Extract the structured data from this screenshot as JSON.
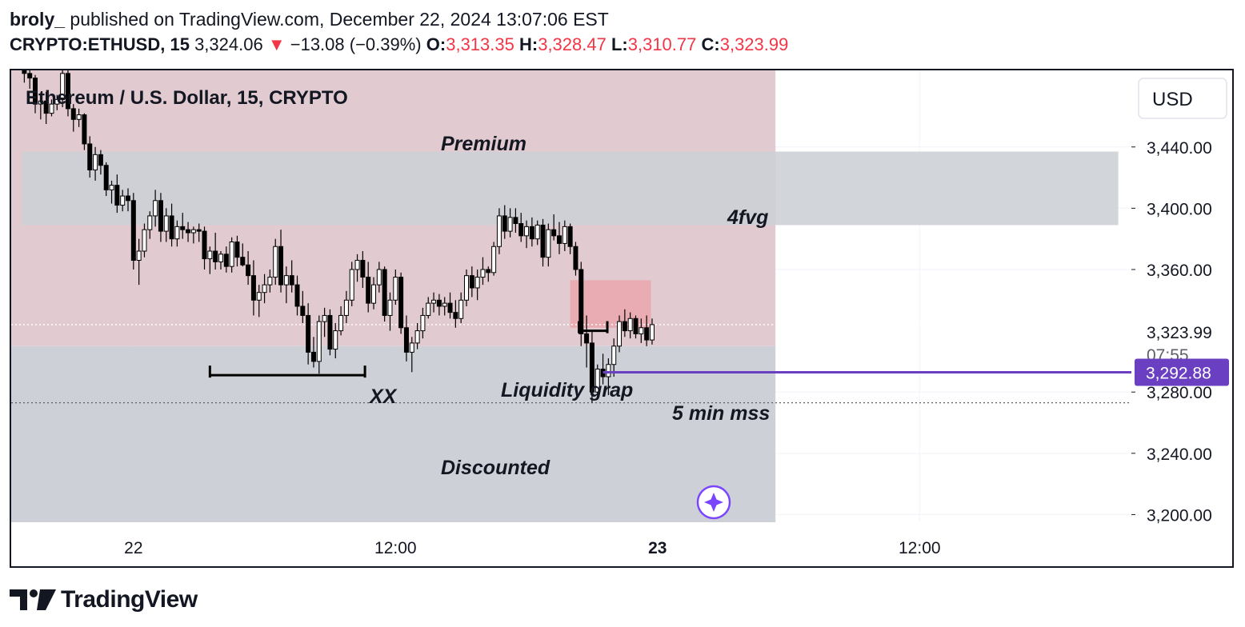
{
  "header": {
    "author": "broly_",
    "published_text": " published on TradingView.com, December 22, 2024 13:07:06 EST",
    "symbol": "CRYPTO:ETHUSD, 15",
    "price": "3,324.06",
    "change_arrow": "▼",
    "change": "−13.08 (−0.39%)",
    "o_label": "O:",
    "o_value": "3,313.35",
    "h_label": "H:",
    "h_value": "3,328.47",
    "l_label": "L:",
    "l_value": "3,310.77",
    "c_label": "C:",
    "c_value": "3,323.99"
  },
  "chart_title": "Ethereum / U.S. Dollar, 15, CRYPTO",
  "currency": "USD",
  "annotations": {
    "premium": "Premium",
    "fvg": "4fvg",
    "xx": "XX",
    "liquidity": "Liquidity grap",
    "mss": "5 min mss",
    "discounted": "Discounted"
  },
  "price_labels": {
    "last": "3,323.99",
    "countdown": "07:55",
    "line": "3,292.88"
  },
  "logo": {
    "text": "TradingView",
    "icon": "tradingview-logo-icon"
  },
  "colors": {
    "premium_zone": "#e2cbd0",
    "discount_zone": "#cdd0d6",
    "fvg_zone": "#cdd0d6",
    "liquidity_box": "#eaa7ae",
    "horizontal_line": "#6a3fc1",
    "candle": "#000000",
    "down_change": "#f23645"
  },
  "chart_data": {
    "type": "candlestick",
    "title": "Ethereum / U.S. Dollar, 15, CRYPTO",
    "y_axis": {
      "unit": "USD",
      "ticks": [
        3440,
        3400,
        3360,
        3280,
        3240,
        3200
      ],
      "tick_labels": [
        "3,440.00",
        "3,400.00",
        "3,360.00",
        "3,280.00",
        "3,240.00",
        "3,200.00"
      ],
      "range": [
        3195,
        3490
      ]
    },
    "x_axis": {
      "tick_labels": [
        "22",
        "12:00",
        "23",
        "12:00"
      ],
      "tick_hours": [
        0,
        12,
        24,
        36
      ],
      "range_hours": [
        -5.6,
        45.7
      ]
    },
    "zones": [
      {
        "name": "Premium",
        "from_hours": -5.6,
        "to_hours": 29.4,
        "price_low": 3310,
        "price_high": 3490
      },
      {
        "name": "Discounted",
        "from_hours": -5.6,
        "to_hours": 29.4,
        "price_low": 3195,
        "price_high": 3310
      },
      {
        "name": "4fvg",
        "from_hours": -5.1,
        "to_hours": 45.1,
        "price_low": 3389,
        "price_high": 3437
      },
      {
        "name": "liquidity box",
        "from_hours": 20.0,
        "to_hours": 23.7,
        "price_low": 3322,
        "price_high": 3353
      }
    ],
    "lines": [
      {
        "name": "XX",
        "from_hours": 3.5,
        "to_hours": 10.6,
        "price": 3291
      },
      {
        "name": "5 min mss",
        "from_hours": 20.4,
        "to_hours": 21.7,
        "price": 3320
      },
      {
        "name": "3,292.88",
        "from_hours": 21.5,
        "to_hours": 45.7,
        "price": 3292.88
      }
    ],
    "current_price": 3323.99,
    "current_line_price": 3324,
    "low_line_price": 3273,
    "candles": [
      [
        -5.0,
        3490,
        3492,
        3482,
        3488
      ],
      [
        -4.75,
        3488,
        3490,
        3478,
        3485
      ],
      [
        -4.5,
        3485,
        3487,
        3462,
        3468
      ],
      [
        -4.25,
        3468,
        3474,
        3458,
        3470
      ],
      [
        -4.0,
        3470,
        3476,
        3455,
        3462
      ],
      [
        -3.75,
        3462,
        3471,
        3460,
        3468
      ],
      [
        -3.5,
        3468,
        3474,
        3464,
        3471
      ],
      [
        -3.25,
        3471,
        3491,
        3466,
        3488
      ],
      [
        -3.0,
        3488,
        3490,
        3460,
        3465
      ],
      [
        -2.75,
        3465,
        3468,
        3450,
        3458
      ],
      [
        -2.5,
        3458,
        3465,
        3453,
        3461
      ],
      [
        -2.25,
        3461,
        3462,
        3438,
        3442
      ],
      [
        -2.0,
        3442,
        3447,
        3420,
        3425
      ],
      [
        -1.75,
        3425,
        3440,
        3418,
        3435
      ],
      [
        -1.5,
        3435,
        3438,
        3422,
        3428
      ],
      [
        -1.25,
        3428,
        3430,
        3408,
        3412
      ],
      [
        -1.0,
        3412,
        3418,
        3403,
        3415
      ],
      [
        -0.75,
        3415,
        3422,
        3397,
        3402
      ],
      [
        -0.5,
        3402,
        3412,
        3398,
        3408
      ],
      [
        -0.25,
        3408,
        3413,
        3398,
        3405
      ],
      [
        0.0,
        3405,
        3410,
        3360,
        3366
      ],
      [
        0.25,
        3366,
        3380,
        3350,
        3372
      ],
      [
        0.5,
        3372,
        3390,
        3368,
        3386
      ],
      [
        0.75,
        3386,
        3398,
        3380,
        3395
      ],
      [
        1.0,
        3395,
        3412,
        3388,
        3405
      ],
      [
        1.25,
        3405,
        3410,
        3378,
        3385
      ],
      [
        1.5,
        3385,
        3400,
        3378,
        3395
      ],
      [
        1.75,
        3395,
        3403,
        3375,
        3380
      ],
      [
        2.0,
        3380,
        3392,
        3375,
        3388
      ],
      [
        2.25,
        3388,
        3397,
        3380,
        3386
      ],
      [
        2.5,
        3386,
        3391,
        3378,
        3384
      ],
      [
        2.75,
        3384,
        3388,
        3377,
        3386
      ],
      [
        3.0,
        3386,
        3390,
        3378,
        3385
      ],
      [
        3.25,
        3385,
        3388,
        3360,
        3367
      ],
      [
        3.5,
        3367,
        3375,
        3357,
        3372
      ],
      [
        3.75,
        3372,
        3384,
        3360,
        3365
      ],
      [
        4.0,
        3365,
        3372,
        3360,
        3370
      ],
      [
        4.25,
        3370,
        3375,
        3358,
        3362
      ],
      [
        4.5,
        3362,
        3381,
        3358,
        3378
      ],
      [
        4.75,
        3378,
        3382,
        3362,
        3368
      ],
      [
        5.0,
        3368,
        3377,
        3362,
        3363
      ],
      [
        5.25,
        3363,
        3372,
        3350,
        3356
      ],
      [
        5.5,
        3356,
        3366,
        3330,
        3340
      ],
      [
        5.75,
        3340,
        3350,
        3329,
        3345
      ],
      [
        6.0,
        3345,
        3357,
        3338,
        3350
      ],
      [
        6.25,
        3350,
        3360,
        3345,
        3355
      ],
      [
        6.5,
        3355,
        3380,
        3350,
        3375
      ],
      [
        6.75,
        3375,
        3386,
        3345,
        3350
      ],
      [
        7.0,
        3350,
        3362,
        3338,
        3356
      ],
      [
        7.25,
        3356,
        3366,
        3345,
        3350
      ],
      [
        7.5,
        3350,
        3356,
        3330,
        3336
      ],
      [
        7.75,
        3336,
        3346,
        3325,
        3330
      ],
      [
        8.0,
        3330,
        3338,
        3298,
        3306
      ],
      [
        8.25,
        3306,
        3316,
        3296,
        3300
      ],
      [
        8.5,
        3300,
        3330,
        3292,
        3326
      ],
      [
        8.75,
        3326,
        3335,
        3316,
        3330
      ],
      [
        9.0,
        3330,
        3334,
        3304,
        3308
      ],
      [
        9.25,
        3308,
        3325,
        3302,
        3320
      ],
      [
        9.5,
        3320,
        3336,
        3317,
        3330
      ],
      [
        9.75,
        3330,
        3346,
        3325,
        3340
      ],
      [
        10.0,
        3340,
        3365,
        3336,
        3360
      ],
      [
        10.25,
        3360,
        3370,
        3352,
        3366
      ],
      [
        10.5,
        3366,
        3372,
        3348,
        3355
      ],
      [
        10.75,
        3355,
        3365,
        3332,
        3338
      ],
      [
        11.0,
        3338,
        3355,
        3334,
        3350
      ],
      [
        11.25,
        3350,
        3365,
        3345,
        3360
      ],
      [
        11.5,
        3360,
        3362,
        3326,
        3330
      ],
      [
        11.75,
        3330,
        3345,
        3320,
        3340
      ],
      [
        12.0,
        3340,
        3360,
        3337,
        3355
      ],
      [
        12.25,
        3355,
        3358,
        3318,
        3322
      ],
      [
        12.5,
        3322,
        3330,
        3300,
        3306
      ],
      [
        12.75,
        3306,
        3316,
        3293,
        3312
      ],
      [
        13.0,
        3312,
        3325,
        3308,
        3320
      ],
      [
        13.25,
        3320,
        3335,
        3315,
        3330
      ],
      [
        13.5,
        3330,
        3342,
        3328,
        3338
      ],
      [
        13.75,
        3338,
        3345,
        3332,
        3340
      ],
      [
        14.0,
        3340,
        3344,
        3330,
        3336
      ],
      [
        14.25,
        3336,
        3342,
        3330,
        3338
      ],
      [
        14.5,
        3338,
        3345,
        3328,
        3332
      ],
      [
        14.75,
        3332,
        3340,
        3322,
        3328
      ],
      [
        15.0,
        3328,
        3345,
        3325,
        3340
      ],
      [
        15.25,
        3340,
        3360,
        3336,
        3356
      ],
      [
        15.5,
        3356,
        3362,
        3342,
        3348
      ],
      [
        15.75,
        3348,
        3360,
        3340,
        3355
      ],
      [
        16.0,
        3355,
        3368,
        3350,
        3360
      ],
      [
        16.25,
        3360,
        3362,
        3352,
        3358
      ],
      [
        16.5,
        3358,
        3378,
        3356,
        3375
      ],
      [
        16.75,
        3375,
        3400,
        3370,
        3395
      ],
      [
        17.0,
        3395,
        3402,
        3380,
        3385
      ],
      [
        17.25,
        3385,
        3400,
        3381,
        3394
      ],
      [
        17.5,
        3394,
        3400,
        3384,
        3390
      ],
      [
        17.75,
        3390,
        3397,
        3378,
        3382
      ],
      [
        18.0,
        3382,
        3392,
        3374,
        3388
      ],
      [
        18.25,
        3388,
        3394,
        3375,
        3380
      ],
      [
        18.5,
        3380,
        3392,
        3376,
        3389
      ],
      [
        18.75,
        3389,
        3393,
        3362,
        3368
      ],
      [
        19.0,
        3368,
        3390,
        3362,
        3386
      ],
      [
        19.25,
        3386,
        3396,
        3379,
        3382
      ],
      [
        19.5,
        3382,
        3391,
        3370,
        3377
      ],
      [
        19.75,
        3377,
        3392,
        3372,
        3388
      ],
      [
        20.0,
        3388,
        3390,
        3370,
        3375
      ],
      [
        20.25,
        3375,
        3378,
        3356,
        3360
      ],
      [
        20.5,
        3360,
        3365,
        3310,
        3318
      ],
      [
        20.75,
        3318,
        3330,
        3296,
        3312
      ],
      [
        21.0,
        3312,
        3320,
        3273,
        3280
      ],
      [
        21.25,
        3280,
        3298,
        3275,
        3295
      ],
      [
        21.5,
        3295,
        3305,
        3285,
        3290
      ],
      [
        21.75,
        3290,
        3302,
        3278,
        3298
      ],
      [
        22.0,
        3298,
        3315,
        3290,
        3310
      ],
      [
        22.25,
        3310,
        3330,
        3306,
        3326
      ],
      [
        22.5,
        3326,
        3334,
        3316,
        3320
      ],
      [
        22.75,
        3320,
        3332,
        3315,
        3328
      ],
      [
        23.0,
        3328,
        3330,
        3315,
        3318
      ],
      [
        23.25,
        3318,
        3328,
        3312,
        3322
      ],
      [
        23.5,
        3322,
        3330,
        3310,
        3314
      ],
      [
        23.75,
        3314,
        3328,
        3311,
        3324
      ]
    ]
  }
}
